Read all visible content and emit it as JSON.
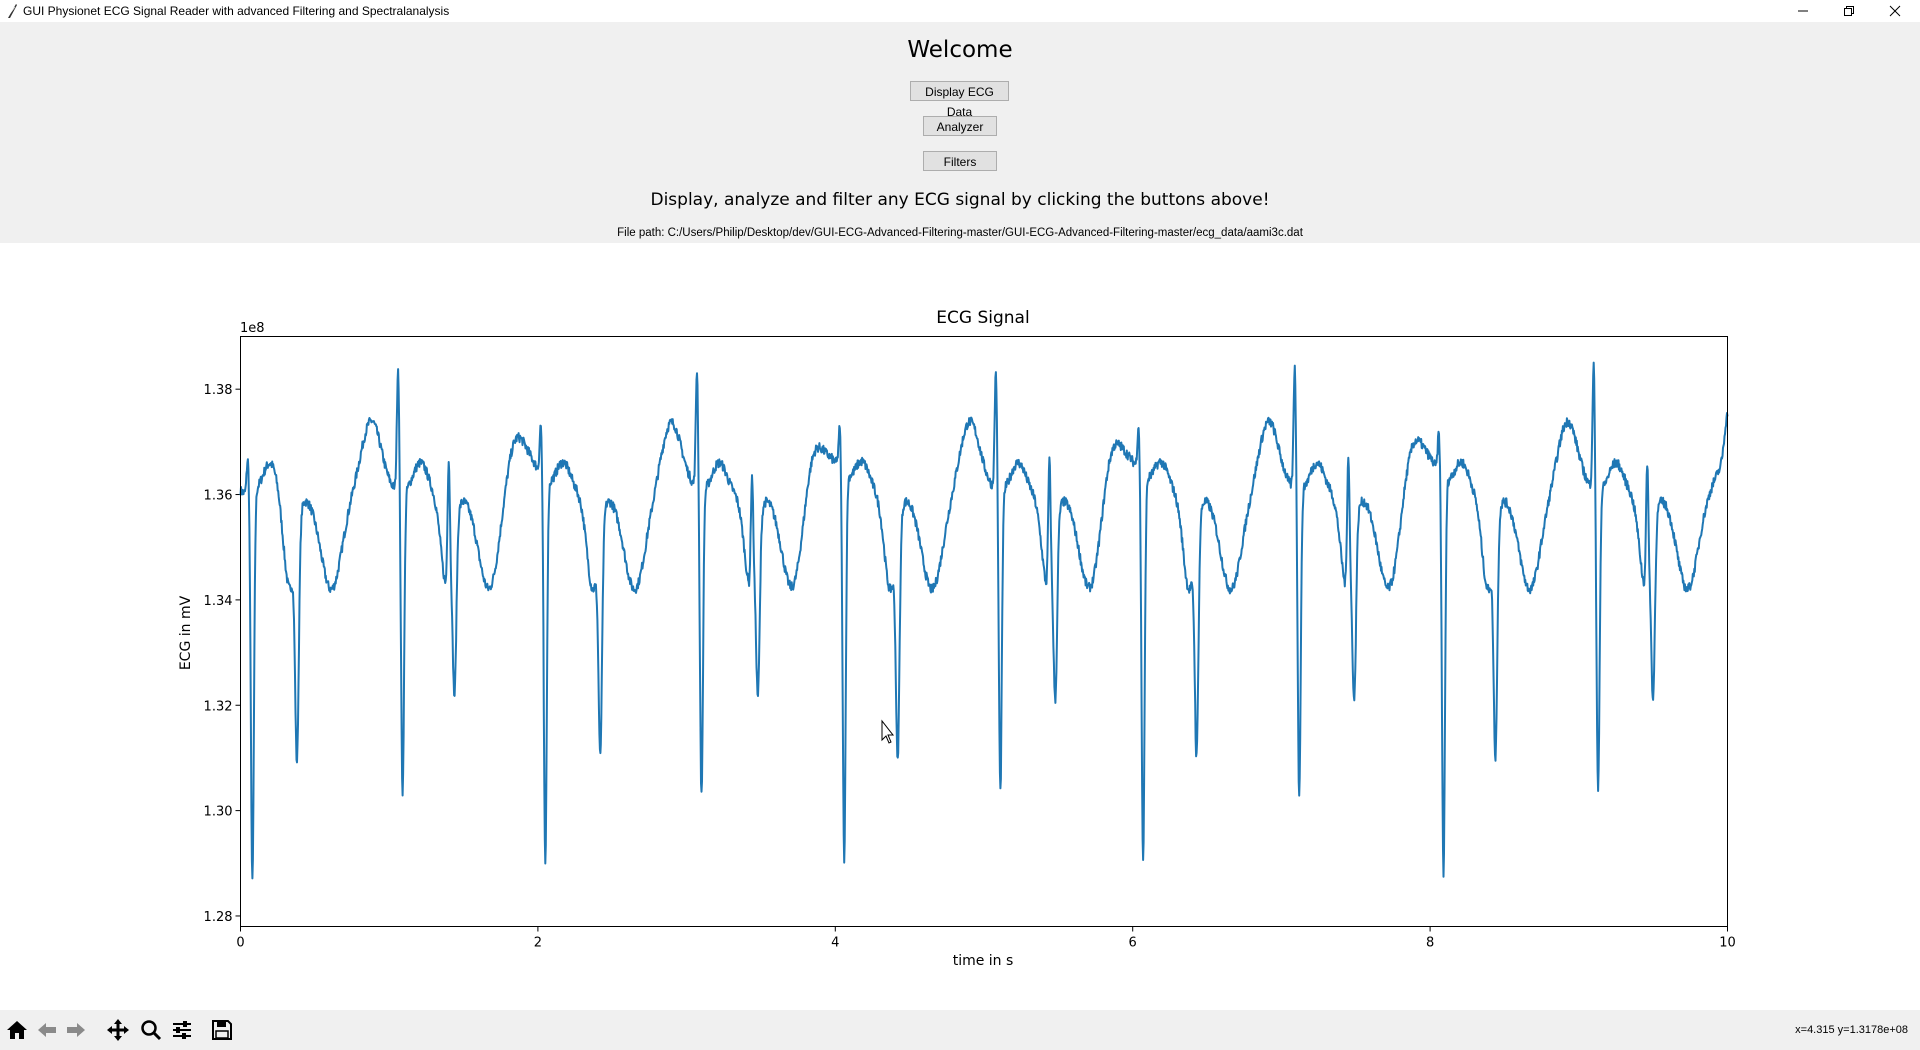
{
  "window": {
    "title": "GUI Physionet ECG Signal Reader with advanced Filtering and Spectralanalysis",
    "controls": [
      "minimize-icon",
      "restore-icon",
      "close-icon"
    ]
  },
  "header": {
    "welcome": "Welcome",
    "buttons": {
      "display": "Display ECG Data",
      "analyzer": "Analyzer",
      "filters": "Filters"
    },
    "subtitle": "Display, analyze and filter any ECG signal by clicking the buttons above!",
    "file_path": "File path: C:/Users/Philip/Desktop/dev/GUI-ECG-Advanced-Filtering-master/GUI-ECG-Advanced-Filtering-master/ecg_data/aami3c.dat"
  },
  "chart_data": {
    "type": "line",
    "title": "ECG Signal",
    "xlabel": "time in s",
    "ylabel": "ECG in mV",
    "offset_label": "1e8",
    "xlim": [
      0,
      10
    ],
    "ylim": [
      1.278,
      1.39
    ],
    "xticks": [
      "0",
      "2",
      "4",
      "6",
      "8",
      "10"
    ],
    "yticks": [
      "1.28",
      "1.30",
      "1.32",
      "1.34",
      "1.36",
      "1.38"
    ],
    "line_color": "#1f77b4",
    "beats": [
      {
        "r_time": 0.05,
        "r_peak": 1.367,
        "q_min": 1.286,
        "t_time": 0.38,
        "s2": 1.313
      },
      {
        "r_time": 1.06,
        "r_peak": 1.384,
        "q_min": 1.303,
        "t_time": 1.44,
        "s2": 1.327,
        "r2": 1.384
      },
      {
        "r_time": 2.02,
        "r_peak": 1.37,
        "q_min": 1.287,
        "t_time": 2.42,
        "s2": 1.314
      },
      {
        "r_time": 3.07,
        "r_peak": 1.383,
        "q_min": 1.302,
        "t_time": 3.48,
        "s2": 1.327,
        "r2": 1.381
      },
      {
        "r_time": 4.03,
        "r_peak": 1.368,
        "q_min": 1.287,
        "t_time": 4.42,
        "s2": 1.313
      },
      {
        "r_time": 5.08,
        "r_peak": 1.383,
        "q_min": 1.303,
        "t_time": 5.48,
        "s2": 1.326,
        "r2": 1.384
      },
      {
        "r_time": 6.04,
        "r_peak": 1.369,
        "q_min": 1.287,
        "t_time": 6.43,
        "s2": 1.314
      },
      {
        "r_time": 7.09,
        "r_peak": 1.384,
        "q_min": 1.302,
        "t_time": 7.49,
        "s2": 1.326,
        "r2": 1.385
      },
      {
        "r_time": 8.06,
        "r_peak": 1.368,
        "q_min": 1.285,
        "t_time": 8.44,
        "s2": 1.314
      },
      {
        "r_time": 9.1,
        "r_peak": 1.384,
        "q_min": 1.303,
        "t_time": 9.5,
        "s2": 1.326,
        "r2": 1.383
      }
    ],
    "baseline": 1.36,
    "end_value": 1.369
  },
  "toolbar": {
    "icons": [
      "home-icon",
      "back-icon",
      "forward-icon",
      "pan-icon",
      "zoom-icon",
      "configure-icon",
      "save-icon"
    ],
    "coords": "x=4.315 y=1.3178e+08"
  }
}
